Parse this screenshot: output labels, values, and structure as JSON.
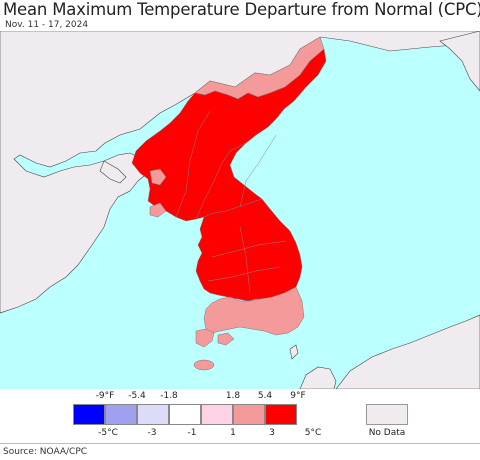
{
  "title": "Mean Maximum Temperature Departure from Normal (CPC)",
  "date_range": "Nov. 11 - 17, 2024",
  "source": "Source: NOAA/CPC",
  "legend": {
    "swatches": [
      {
        "color": "#0000ff"
      },
      {
        "color": "#a0a0f0"
      },
      {
        "color": "#dcdcf8"
      },
      {
        "color": "#ffffff"
      },
      {
        "color": "#fcd2e4"
      },
      {
        "color": "#f59a9a"
      },
      {
        "color": "#ff0000"
      }
    ],
    "fahrenheit_ticks": [
      "-9°F",
      "-5.4",
      "-1.8",
      "1.8",
      "5.4",
      "9°F"
    ],
    "celsius_ticks": [
      "-5°C",
      "-3",
      "-1",
      "1",
      "3",
      "5°C"
    ],
    "no_data_label": "No Data",
    "no_data_color": "#efebef"
  },
  "colors": {
    "ocean": "#bbffff",
    "no_data_land": "#efebef",
    "strong_warm": "#ff0000",
    "moderate_warm": "#f59a9a",
    "border": "#777777"
  }
}
